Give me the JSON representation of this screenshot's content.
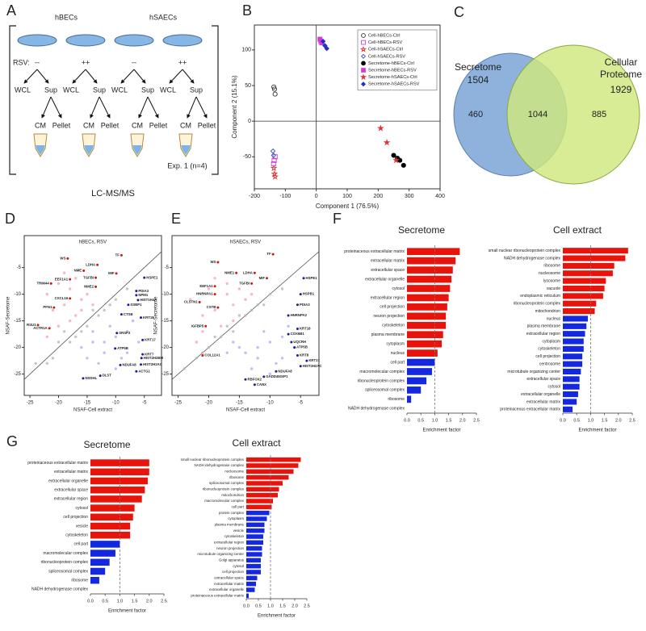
{
  "panel_labels": [
    "A",
    "B",
    "C",
    "D",
    "E",
    "F",
    "G"
  ],
  "diagram": {
    "cell_types": [
      "hBECs",
      "hSAECs"
    ],
    "rsv_label": "RSV:",
    "rsv_values": [
      "--",
      "++",
      "--",
      "++"
    ],
    "wcl": "WCL",
    "sup": "Sup",
    "cm": "CM",
    "pellet": "Pellet",
    "experiment": "Exp. 1 (n=4)",
    "method": "LC-MS/MS"
  },
  "venn": {
    "left_label": "Secretome",
    "left_total": 1504,
    "right_label": "Cellular Proteome",
    "right_total": 1929,
    "left_only": 460,
    "overlap": 1044,
    "right_only": 885
  },
  "chart_data": [
    {
      "type": "scatter",
      "x_label": "Component 1 (76.5%)",
      "y_label": "Component 2 (15.1%)",
      "xlim": [
        -200,
        400
      ],
      "xticks": [
        -200,
        -100,
        0,
        100,
        200,
        300,
        400
      ],
      "ylim": [
        -95,
        135
      ],
      "yticks": [
        -50,
        0,
        50,
        100
      ],
      "zero_lines": true,
      "legend": "upper right",
      "series": [
        {
          "name": "Cell-hBECs-Ctrl",
          "color": "#333333",
          "marker": "circle",
          "filled": false,
          "x": [
            -135,
            -133,
            -137
          ],
          "values": [
            45,
            38,
            48
          ]
        },
        {
          "name": "Cell-hBECs-RSV",
          "color": "#d63bd6",
          "marker": "square",
          "filled": false,
          "x": [
            -136,
            -133,
            -138
          ],
          "values": [
            -55,
            -50,
            -60
          ]
        },
        {
          "name": "Cell-hSAECs-Ctrl",
          "color": "#e03030",
          "marker": "star",
          "filled": false,
          "x": [
            -137,
            -135,
            -133
          ],
          "values": [
            -66,
            -74,
            -78
          ]
        },
        {
          "name": "Cell-hSAECs-RSV",
          "color": "#3050c0",
          "marker": "diamond",
          "filled": false,
          "x": [
            -140,
            -138
          ],
          "values": [
            -42,
            -48
          ]
        },
        {
          "name": "Secretome-hBECs-Ctrl",
          "color": "#000000",
          "marker": "circle",
          "filled": true,
          "x": [
            250,
            262,
            270,
            282
          ],
          "values": [
            -48,
            -52,
            -55,
            -62
          ]
        },
        {
          "name": "Secretome-hBECs-RSV",
          "color": "#d63bd6",
          "marker": "square",
          "filled": true,
          "x": [
            12,
            15,
            18
          ],
          "values": [
            115,
            112,
            110
          ]
        },
        {
          "name": "Secretome-hSAECs-Ctrl",
          "color": "#e03030",
          "marker": "star",
          "filled": true,
          "x": [
            208,
            228,
            258
          ],
          "values": [
            -10,
            -30,
            -55
          ]
        },
        {
          "name": "Secretome-hSAECs-RSV",
          "color": "#2030c8",
          "marker": "diamond",
          "filled": true,
          "x": [
            22,
            28,
            34
          ],
          "values": [
            112,
            106,
            102
          ]
        }
      ]
    },
    {
      "type": "scatter",
      "title": "hBECs, RSV",
      "x_label": "NSAF-Cell extract",
      "y_label": "NSAF-Secretome",
      "xlim": [
        -26,
        -2
      ],
      "xticks": [
        -25,
        -20,
        -15,
        -10,
        -5
      ],
      "ylim": [
        -29,
        1
      ],
      "yticks": [
        -25,
        -20,
        -15,
        -10,
        -5
      ],
      "diagonal": true,
      "series": [
        {
          "color": "#f2a8b0",
          "x": [
            -22,
            -21,
            -20,
            -19,
            -18,
            -17,
            -16,
            -15,
            -14,
            -20,
            -18,
            -16,
            -22,
            -19,
            -17
          ],
          "values": [
            -10,
            -13,
            -8,
            -12,
            -9,
            -14,
            -11,
            -10,
            -12,
            -16,
            -15,
            -13,
            -18,
            -6,
            -7
          ]
        },
        {
          "color": "#aeb0ec",
          "x": [
            -16,
            -14,
            -12,
            -10,
            -8,
            -13,
            -11,
            -9,
            -15,
            -7,
            -12,
            -10,
            -14,
            -6,
            -8
          ],
          "values": [
            -20,
            -19,
            -21,
            -18,
            -17,
            -23,
            -16,
            -22,
            -22,
            -15,
            -19,
            -24,
            -17,
            -19,
            -21
          ]
        },
        {
          "color": "#b8b8b8",
          "x": [
            -24,
            -22,
            -20,
            -18,
            -16,
            -14,
            -12,
            -10,
            -8,
            -19,
            -15,
            -11,
            -21,
            -13,
            -17
          ],
          "values": [
            -23,
            -23,
            -19,
            -19,
            -17,
            -13,
            -13,
            -11,
            -9,
            -17,
            -16,
            -12,
            -22,
            -14,
            -18
          ]
        },
        {
          "color": "#d01818",
          "labels": [
            "WS",
            "TF",
            "LDHA",
            "NME",
            "TGFBI",
            "MIF",
            "EEF1A1",
            "TRIM44",
            "NME2",
            "CXCL16",
            "PFN1",
            "ACTR1A",
            "RSU1"
          ],
          "x": [
            -18.4,
            -9,
            -13.2,
            -15.6,
            -13.5,
            -9.9,
            -18,
            -21.3,
            -13.5,
            -18,
            -20.8,
            -21.6,
            -23.6
          ],
          "values": [
            -3.3,
            -2.7,
            -4.5,
            -5.6,
            -6.9,
            -6.1,
            -7.2,
            -8,
            -8.6,
            -10.8,
            -12.5,
            -16.4,
            -15.8
          ]
        },
        {
          "color": "#1c1c9c",
          "labels": [
            "HSPE1",
            "PDIA3",
            "NPM1",
            "HIST1H4A",
            "SSBP1",
            "CTSB",
            "KRT18",
            "SRSF3",
            "ATP5B",
            "KRT17",
            "KRT7",
            "HIST2H2BM",
            "HIST2H2AC",
            "NDUFA8",
            "ACTG1",
            "DLST",
            "NSDHL"
          ],
          "x": [
            -5,
            -6.4,
            -6.4,
            -6.1,
            -7.8,
            -9,
            -5.6,
            -9.8,
            -10.1,
            -5.3,
            -5.3,
            -5.5,
            -5.6,
            -9.2,
            -6.4,
            -12.7,
            -15.7
          ],
          "values": [
            -6.9,
            -9.4,
            -10.2,
            -11.1,
            -12,
            -13.8,
            -14.4,
            -17.3,
            -20.2,
            -18.6,
            -21.3,
            -22,
            -23.2,
            -23.3,
            -24.5,
            -25.3,
            -25.8
          ]
        }
      ]
    },
    {
      "type": "scatter",
      "title": "hSAECs, RSV",
      "x_label": "NSAF-Cell extract",
      "y_label": "NSAF-Secretome",
      "xlim": [
        -26,
        -2
      ],
      "xticks": [
        -25,
        -20,
        -15,
        -10,
        -5
      ],
      "ylim": [
        -29,
        1
      ],
      "yticks": [
        -25,
        -20,
        -15,
        -10,
        -5
      ],
      "diagonal": true,
      "series": [
        {
          "color": "#f2a8b0",
          "x": [
            -23,
            -21,
            -20,
            -19,
            -17,
            -16,
            -15,
            -14,
            -21,
            -18,
            -16,
            -22,
            -19,
            -17,
            -13
          ],
          "values": [
            -11,
            -14,
            -9,
            -13,
            -10,
            -15,
            -9,
            -11,
            -17,
            -16,
            -12,
            -19,
            -7,
            -8,
            -10
          ]
        },
        {
          "color": "#aeb0ec",
          "x": [
            -17,
            -15,
            -12,
            -10,
            -8,
            -13,
            -11,
            -9,
            -14,
            -7,
            -12,
            -10,
            -16,
            -6,
            -8
          ],
          "values": [
            -21,
            -20,
            -22,
            -19,
            -18,
            -24,
            -17,
            -23,
            -21,
            -16,
            -20,
            -25,
            -19,
            -20,
            -22
          ]
        },
        {
          "color": "#b8b8b8",
          "x": [
            -24,
            -22,
            -20,
            -18,
            -16,
            -14,
            -12,
            -10,
            -8,
            -19,
            -15,
            -11,
            -21,
            -13,
            -17
          ],
          "values": [
            -24,
            -22,
            -20,
            -18,
            -17,
            -14,
            -12,
            -10,
            -9,
            -18,
            -14,
            -12,
            -21,
            -13,
            -16
          ]
        },
        {
          "color": "#d01818",
          "labels": [
            "WS",
            "TF",
            "NME1",
            "LDHA",
            "TGFBI",
            "MIF",
            "EEF1A1",
            "HNRNPA1",
            "CLSTN1",
            "CSTB",
            "IGFBP5",
            "COL12A1"
          ],
          "x": [
            -18.5,
            -9.5,
            -15.5,
            -12.5,
            -13,
            -10.5,
            -19,
            -19,
            -21.5,
            -18.5,
            -20.5,
            -21
          ],
          "values": [
            -4,
            -2.5,
            -6,
            -6,
            -8,
            -7,
            -8.5,
            -10,
            -11.5,
            -12.5,
            -16,
            -21.5
          ]
        },
        {
          "color": "#1c1c9c",
          "labels": [
            "HSPE1",
            "HSPB1",
            "PDIA3",
            "HNRNPA2",
            "KRT18",
            "COX6B1",
            "UQCRH",
            "ATP5B",
            "KRT8",
            "KRT17",
            "HIST2H2AC",
            "NDUFA8",
            "GADD45GIP1",
            "RBFOX2",
            "CANX"
          ],
          "x": [
            -4.5,
            -5,
            -5.5,
            -7,
            -5.5,
            -7,
            -6.5,
            -6,
            -5.5,
            -4,
            -5,
            -9,
            -11,
            -14,
            -12.5
          ],
          "values": [
            -7,
            -10,
            -12,
            -14,
            -16.5,
            -17.5,
            -19,
            -20,
            -21.5,
            -22.5,
            -23.5,
            -24.5,
            -25.5,
            -26,
            -27
          ]
        }
      ]
    },
    {
      "type": "bar",
      "orientation": "horizontal",
      "title": "Secretome",
      "x_label": "Enrichment factor",
      "xlim": [
        0,
        2.5
      ],
      "xticks": [
        {
          "value": 0,
          "label": "0.0"
        },
        0.5,
        {
          "value": 1,
          "label": "1.0"
        },
        1.5,
        {
          "value": 2,
          "label": "2.0"
        },
        2.5
      ],
      "reference_line": 1,
      "categories": [
        "proteinaceous extracellular matrix",
        "extracellular matrix",
        "extracellular space",
        "extracellular organelle",
        "cytosol",
        "extracellular region",
        "cell projection",
        "neuron projection",
        "cytoskeleton",
        "plasma membrane",
        "cytoplasm",
        "nucleus",
        "cell part",
        "macromolecular complex",
        "ribonucleoprotein complex",
        "spliceosomal complex",
        "ribosome",
        "NADH dehydrogenase complex"
      ],
      "values": [
        1.9,
        1.75,
        1.65,
        1.6,
        1.55,
        1.5,
        1.45,
        1.4,
        1.4,
        1.3,
        1.25,
        1.1,
        1.0,
        0.9,
        0.7,
        0.5,
        0.15,
        0
      ],
      "colors": [
        "#e8140c",
        "#e8140c",
        "#e8140c",
        "#e8140c",
        "#e8140c",
        "#e8140c",
        "#e8140c",
        "#e8140c",
        "#e8140c",
        "#e8140c",
        "#e8140c",
        "#e8140c",
        "#1428e0",
        "#1428e0",
        "#1428e0",
        "#1428e0",
        "#1428e0",
        "#1428e0"
      ]
    },
    {
      "type": "bar",
      "orientation": "horizontal",
      "title": "Cell extract",
      "x_label": "Enrichment factor",
      "xlim": [
        0,
        2.5
      ],
      "xticks": [
        {
          "value": 0,
          "label": "0.0"
        },
        0.5,
        {
          "value": 1,
          "label": "1.0"
        },
        1.5,
        {
          "value": 2,
          "label": "2.0"
        },
        2.5
      ],
      "reference_line": 1,
      "categories": [
        "small nuclear ribonucleoprotein complex",
        "NADH dehydrogenase complex",
        "ribosome",
        "nucleosome",
        "lysosome",
        "vacuole",
        "endoplasmic reticulum",
        "ribonucleoprotein complex",
        "mitochondrion",
        "nucleus",
        "plasma membrane",
        "extracellular region",
        "cytoplasm",
        "cytoskeleton",
        "cell projection",
        "centrosome",
        "microtubule organizing center",
        "extracellular space",
        "cytosol",
        "extracellular organelle",
        "extracellular matrix",
        "proteinaceous extracellular matrix"
      ],
      "values": [
        2.35,
        2.25,
        1.85,
        1.8,
        1.55,
        1.5,
        1.45,
        1.2,
        1.15,
        0.9,
        0.85,
        0.8,
        0.75,
        0.75,
        0.7,
        0.7,
        0.65,
        0.6,
        0.6,
        0.55,
        0.5,
        0.35
      ],
      "colors": [
        "#e8140c",
        "#e8140c",
        "#e8140c",
        "#e8140c",
        "#e8140c",
        "#e8140c",
        "#e8140c",
        "#e8140c",
        "#e8140c",
        "#1428e0",
        "#1428e0",
        "#1428e0",
        "#1428e0",
        "#1428e0",
        "#1428e0",
        "#1428e0",
        "#1428e0",
        "#1428e0",
        "#1428e0",
        "#1428e0",
        "#1428e0",
        "#1428e0"
      ]
    },
    {
      "type": "bar",
      "orientation": "horizontal",
      "title": "Secretome",
      "x_label": "Enrichment factor",
      "xlim": [
        0,
        2.5
      ],
      "xticks": [
        {
          "value": 0,
          "label": "0.0"
        },
        0.5,
        {
          "value": 1,
          "label": "1.0"
        },
        1.5,
        {
          "value": 2,
          "label": "2.0"
        },
        2.5
      ],
      "reference_line": 1,
      "categories": [
        "proteinaceous extracellular matrix",
        "extracellular matrix",
        "extracellular organelle",
        "extracellular space",
        "extracellular region",
        "cytosol",
        "cell projection",
        "vesicle",
        "cytoskeleton",
        "cell part",
        "macromolecular complex",
        "ribonucleoprotein complex",
        "spliceosomal complex",
        "ribosome",
        "NADH dehydrogenase complex"
      ],
      "values": [
        2.0,
        2.0,
        1.95,
        1.85,
        1.75,
        1.5,
        1.45,
        1.35,
        1.35,
        1.0,
        0.85,
        0.65,
        0.5,
        0.3,
        0
      ],
      "colors": [
        "#e8140c",
        "#e8140c",
        "#e8140c",
        "#e8140c",
        "#e8140c",
        "#e8140c",
        "#e8140c",
        "#e8140c",
        "#e8140c",
        "#1428e0",
        "#1428e0",
        "#1428e0",
        "#1428e0",
        "#1428e0",
        "#1428e0"
      ]
    },
    {
      "type": "bar",
      "orientation": "horizontal",
      "title": "Cell extract",
      "x_label": "Enrichment factor",
      "xlim": [
        0,
        2.5
      ],
      "xticks": [
        {
          "value": 0,
          "label": "0.0"
        },
        0.5,
        {
          "value": 1,
          "label": "1.0"
        },
        1.5,
        {
          "value": 2,
          "label": "2.0"
        },
        2.5
      ],
      "reference_line": 1,
      "categories": [
        "small nuclear ribonucleoprotein complex",
        "NADH dehydrogenase complex",
        "nucleosome",
        "ribosome",
        "spliceosomal complex",
        "ribonucleoprotein complex",
        "mitochondrion",
        "macromolecular complex",
        "cell part",
        "protein complex",
        "cytoplasm",
        "plasma membrane",
        "vesicle",
        "cytoskeleton",
        "extracellular region",
        "neuron projection",
        "microtubule organizing center",
        "Golgi apparatus",
        "cytosol",
        "cell projection",
        "extracellular space",
        "extracellular matrix",
        "extracellular organelle",
        "proteinaceous extracellular matrix"
      ],
      "values": [
        2.25,
        2.15,
        1.95,
        1.75,
        1.5,
        1.35,
        1.3,
        1.1,
        1.05,
        0.95,
        0.85,
        0.75,
        0.75,
        0.7,
        0.7,
        0.65,
        0.65,
        0.6,
        0.6,
        0.6,
        0.45,
        0.4,
        0.35,
        0.1
      ],
      "colors": [
        "#e8140c",
        "#e8140c",
        "#e8140c",
        "#e8140c",
        "#e8140c",
        "#e8140c",
        "#e8140c",
        "#e8140c",
        "#e8140c",
        "#1428e0",
        "#1428e0",
        "#1428e0",
        "#1428e0",
        "#1428e0",
        "#1428e0",
        "#1428e0",
        "#1428e0",
        "#1428e0",
        "#1428e0",
        "#1428e0",
        "#1428e0",
        "#1428e0",
        "#1428e0",
        "#1428e0"
      ]
    }
  ]
}
